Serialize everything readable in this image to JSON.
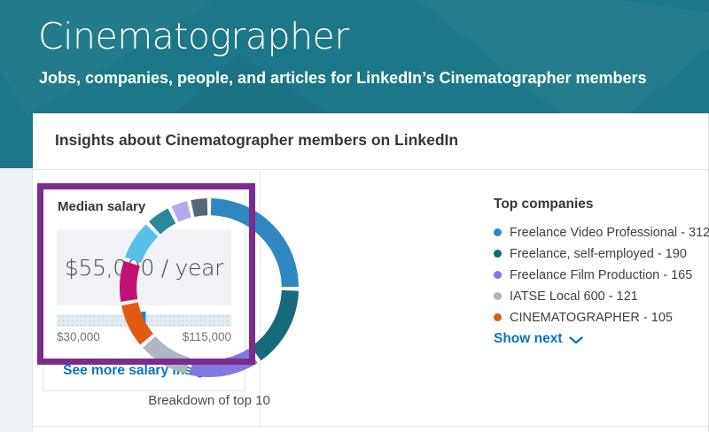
{
  "header": {
    "title": "Cinematographer",
    "subtitle": "Jobs, companies, people, and articles for LinkedIn’s Cinematographer members"
  },
  "insights": {
    "heading": "Insights about Cinematographer members on LinkedIn"
  },
  "salary": {
    "panel_title": "Median salary",
    "median_value": "$55,000 / year",
    "range_min": "$30,000",
    "range_max": "$115,000",
    "slider_position_pct": 49.5,
    "link_label": "See more salary insights",
    "highlight_color": "#7b2c8f"
  },
  "chart_data": {
    "type": "donut",
    "title": "Top companies",
    "caption": "Breakdown of top 10",
    "legend_visible_count": 5,
    "show_next_label": "Show next",
    "series": [
      {
        "label": "Freelance Video Professional",
        "value": 312,
        "color": "#2e87c1"
      },
      {
        "label": "Freelance, self-employed",
        "value": 190,
        "color": "#17697c"
      },
      {
        "label": "Freelance Film Production",
        "value": 165,
        "color": "#8278e0"
      },
      {
        "label": "IATSE Local 600",
        "value": 121,
        "color": "#adb8c2"
      },
      {
        "label": "CINEMATOGRAPHER",
        "value": 105,
        "color": "#e05a11"
      },
      {
        "label": "",
        "value": 100,
        "color": "#c21374"
      },
      {
        "label": "",
        "value": 95,
        "color": "#57c0e8"
      },
      {
        "label": "",
        "value": 60,
        "color": "#27899a"
      },
      {
        "label": "",
        "value": 45,
        "color": "#b7a8f0"
      },
      {
        "label": "",
        "value": 45,
        "color": "#566775"
      }
    ]
  }
}
